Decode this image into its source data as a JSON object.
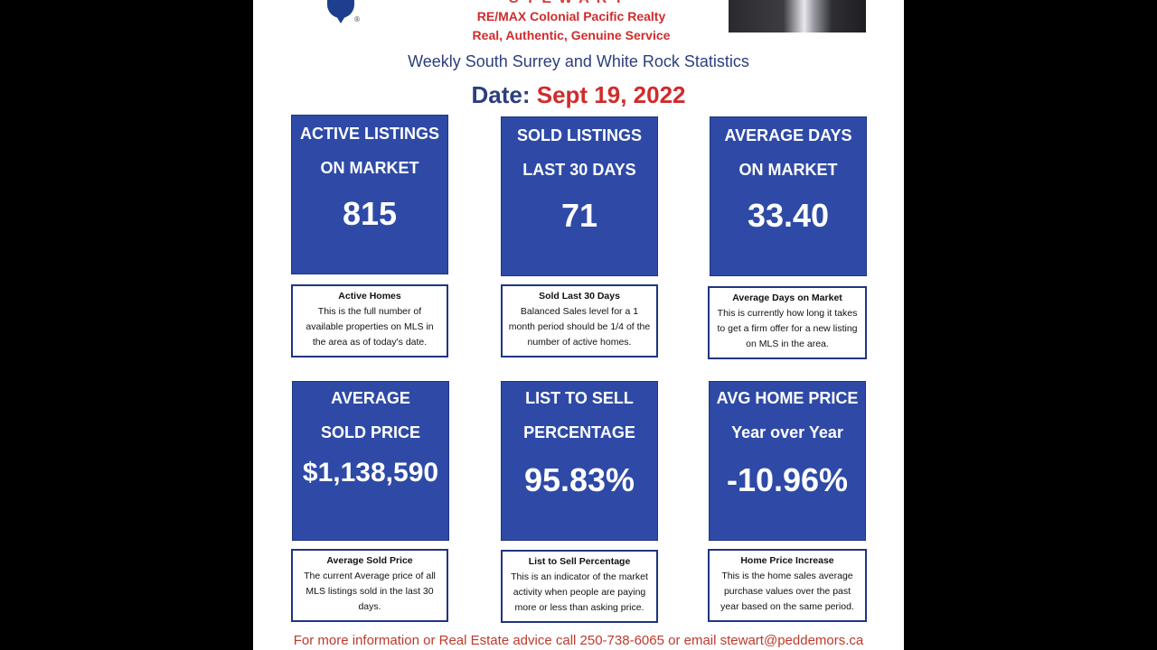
{
  "header": {
    "brand_name": "RE/MAX Colonial Pacific Realty",
    "brand_tagline": "Real, Authentic, Genuine Service",
    "logo_reg_mark": "®",
    "subtitle": "Weekly South Surrey and White Rock Statistics",
    "date_label": "Date:",
    "date_value": "Sept 19, 2022"
  },
  "stats": [
    {
      "line1": "ACTIVE LISTINGS",
      "line2": "ON MARKET",
      "value": "815",
      "desc_title": "Active Homes",
      "desc_body": "This is the full number of available properties on MLS in the area as of today's date."
    },
    {
      "line1": "SOLD LISTINGS",
      "line2": "LAST 30 DAYS",
      "value": "71",
      "desc_title": "Sold Last 30 Days",
      "desc_body": "Balanced Sales level for a 1 month period should be 1/4 of the number of active homes."
    },
    {
      "line1": "AVERAGE DAYS",
      "line2": "ON MARKET",
      "value": "33.40",
      "desc_title": "Average Days on Market",
      "desc_body": "This is currently how long it takes to get a firm offer for a new listing on MLS in the area."
    },
    {
      "line1": "AVERAGE",
      "line2": "SOLD PRICE",
      "value": "$1,138,590",
      "desc_title": "Average Sold Price",
      "desc_body": "The current Average price of all MLS listings sold in the last 30 days."
    },
    {
      "line1": "LIST TO SELL",
      "line2": "PERCENTAGE",
      "value": "95.83%",
      "desc_title": "List to Sell Percentage",
      "desc_body": "This is an indicator of the market activity when people are paying more or less than asking price."
    },
    {
      "line1": "AVG HOME PRICE",
      "line2": "Year over Year",
      "value": "-10.96%",
      "desc_title": "Home Price Increase",
      "desc_body": "This is the home sales average purchase values over the past year based on the same period."
    }
  ],
  "footer": {
    "text": "For more information or Real Estate advice call 250-738-6065 or email stewart@peddemors.ca"
  },
  "colors": {
    "tile_blue": "#2e4aa6",
    "accent_red": "#d12b2b",
    "navy_text": "#2b3f7e",
    "side_bars": "#000000"
  }
}
